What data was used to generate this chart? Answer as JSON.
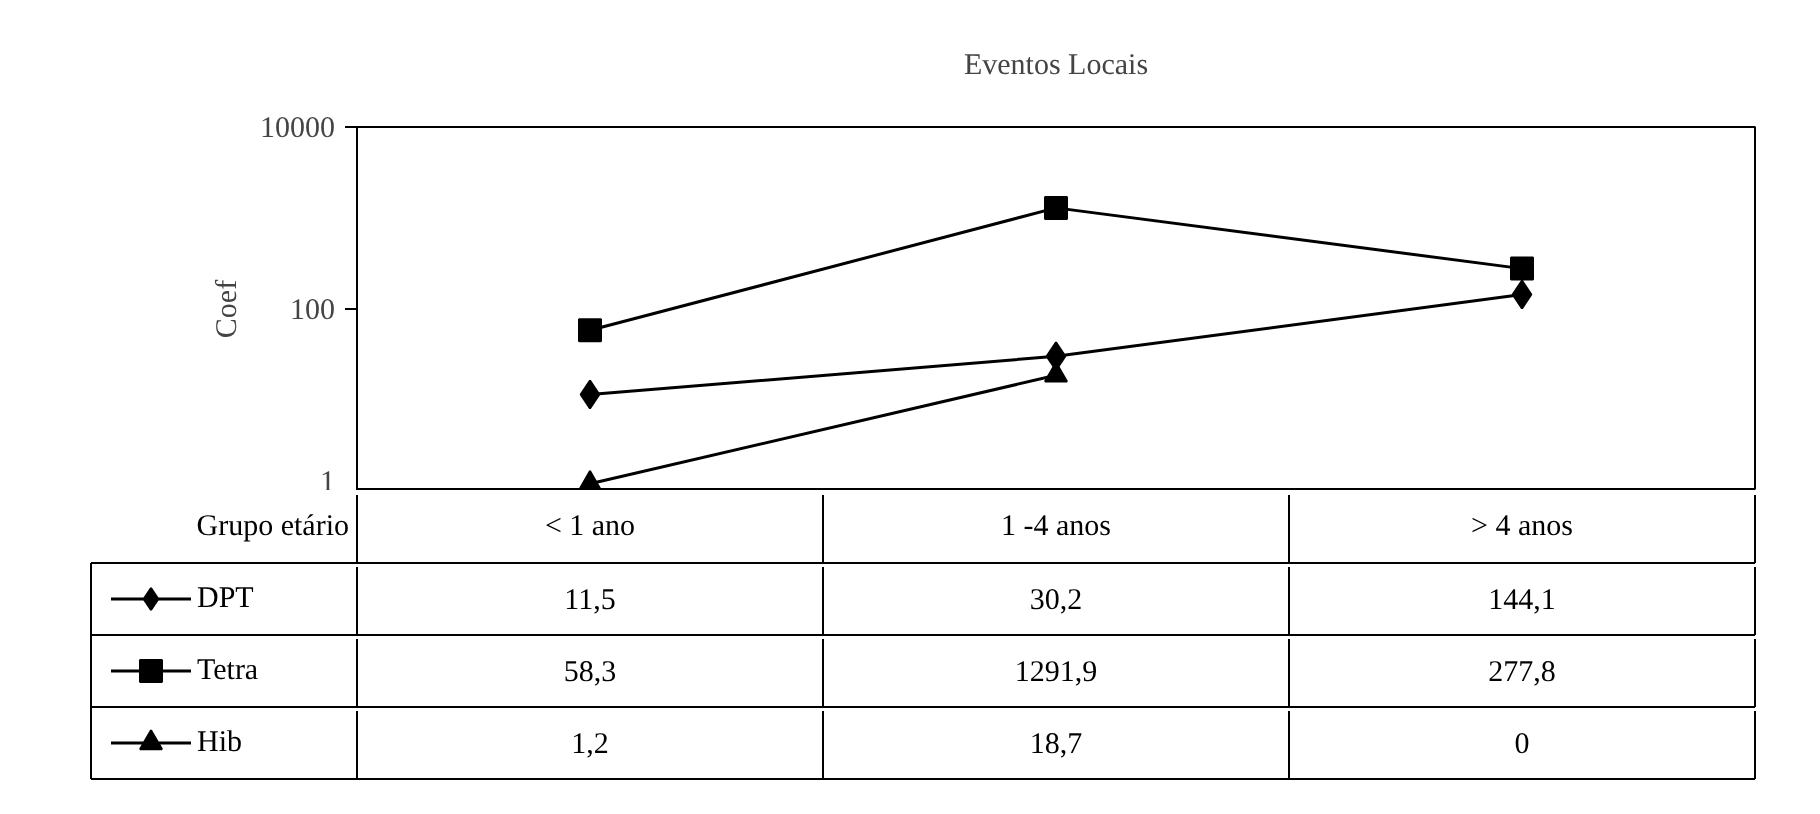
{
  "chart_data": {
    "type": "line",
    "title": "Eventos Locais",
    "ylabel": "Coef",
    "xlabel": "Grupo etário",
    "categories": [
      "< 1 ano",
      "1 -4 anos",
      "> 4 anos"
    ],
    "log": "y",
    "ylim": [
      1,
      10000
    ],
    "yticks": [
      1,
      100,
      10000
    ],
    "grid": false,
    "tick_labels": "y",
    "legend": "bottom left",
    "line_style": "solid",
    "series": [
      {
        "name": "DPT",
        "color": "#000000",
        "marker": "diamond",
        "values": [
          11.5,
          30.2,
          144.1
        ],
        "value_labels": [
          "11,5",
          "30,2",
          "144,1"
        ]
      },
      {
        "name": "Tetra",
        "color": "#000000",
        "marker": "square",
        "values": [
          58.3,
          1291.9,
          277.8
        ],
        "value_labels": [
          "58,3",
          "1291,9",
          "277,8"
        ]
      },
      {
        "name": "Hib",
        "color": "#000000",
        "marker": "triangle",
        "values": [
          1.2,
          18.7,
          null
        ],
        "value_labels": [
          "1,2",
          "18,7",
          "0"
        ]
      }
    ]
  }
}
